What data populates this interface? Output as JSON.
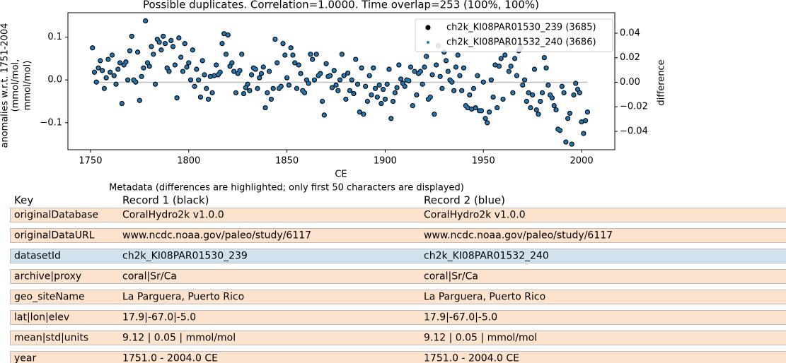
{
  "chart_data": {
    "type": "scatter",
    "title": "Possible duplicates. Correlation=1.0000. Time overlap=253 (100%, 100%)",
    "xlabel": "CE",
    "ylabel": [
      "anomalies w.r.t. 1751-2004",
      "(mmol/mol,",
      "mmol/mol)"
    ],
    "y2label": "difference",
    "xlim": [
      1738.5,
      2016.9
    ],
    "ylim": [
      -0.163,
      0.157
    ],
    "y2lim": [
      -0.055,
      0.0567
    ],
    "xticks": [
      1750,
      1800,
      1850,
      1900,
      1950,
      2000
    ],
    "yticks": [
      {
        "value": -0.1,
        "label": "−0.1"
      },
      {
        "value": 0,
        "label": "0.0"
      },
      {
        "value": 0.1,
        "label": "0.1"
      }
    ],
    "y2ticks": [
      {
        "value": -0.04,
        "label": "−0.04"
      },
      {
        "value": -0.02,
        "label": "−0.02"
      },
      {
        "value": 0,
        "label": "0.00"
      },
      {
        "value": 0.02,
        "label": "0.02"
      },
      {
        "value": 0.04,
        "label": "0.04"
      }
    ],
    "legend": "upper right",
    "x": [
      1751,
      1752,
      1753,
      1754,
      1755,
      1756,
      1757,
      1758,
      1759,
      1760,
      1761,
      1762,
      1763,
      1764,
      1765,
      1766,
      1767,
      1768,
      1769,
      1770,
      1771,
      1772,
      1773,
      1774,
      1775,
      1776,
      1777,
      1778,
      1779,
      1780,
      1781,
      1782,
      1783,
      1784,
      1785,
      1786,
      1787,
      1788,
      1789,
      1790,
      1791,
      1792,
      1793,
      1794,
      1795,
      1796,
      1797,
      1798,
      1799,
      1800,
      1801,
      1802,
      1803,
      1804,
      1805,
      1806,
      1807,
      1808,
      1809,
      1810,
      1811,
      1812,
      1813,
      1814,
      1815,
      1816,
      1817,
      1818,
      1819,
      1820,
      1821,
      1822,
      1823,
      1824,
      1825,
      1826,
      1827,
      1828,
      1829,
      1830,
      1831,
      1832,
      1833,
      1834,
      1835,
      1836,
      1837,
      1838,
      1839,
      1840,
      1841,
      1842,
      1843,
      1844,
      1845,
      1846,
      1847,
      1848,
      1849,
      1850,
      1851,
      1852,
      1853,
      1854,
      1855,
      1856,
      1857,
      1858,
      1859,
      1860,
      1861,
      1862,
      1863,
      1864,
      1865,
      1866,
      1867,
      1868,
      1869,
      1870,
      1871,
      1872,
      1873,
      1874,
      1875,
      1876,
      1877,
      1878,
      1879,
      1880,
      1881,
      1882,
      1883,
      1884,
      1885,
      1886,
      1887,
      1888,
      1889,
      1890,
      1891,
      1892,
      1893,
      1894,
      1895,
      1896,
      1897,
      1898,
      1899,
      1900,
      1901,
      1902,
      1903,
      1904,
      1905,
      1906,
      1907,
      1908,
      1909,
      1910,
      1911,
      1912,
      1913,
      1914,
      1915,
      1916,
      1917,
      1918,
      1919,
      1920,
      1921,
      1922,
      1923,
      1924,
      1925,
      1926,
      1927,
      1928,
      1929,
      1930,
      1931,
      1932,
      1933,
      1934,
      1935,
      1936,
      1937,
      1938,
      1939,
      1940,
      1941,
      1942,
      1943,
      1944,
      1945,
      1946,
      1947,
      1948,
      1949,
      1950,
      1951,
      1952,
      1953,
      1954,
      1955,
      1956,
      1957,
      1958,
      1959,
      1960,
      1961,
      1962,
      1963,
      1964,
      1965,
      1966,
      1967,
      1968,
      1969,
      1970,
      1971,
      1972,
      1973,
      1974,
      1975,
      1976,
      1977,
      1978,
      1979,
      1980,
      1981,
      1982,
      1983,
      1984,
      1985,
      1986,
      1987,
      1988,
      1989,
      1990,
      1991,
      1992,
      1993,
      1994,
      1995,
      1996,
      1997,
      1998,
      1999,
      2000,
      2001,
      2002,
      2003
    ],
    "series": [
      {
        "name": "ch2k_KI08PAR01530_239 (3685)",
        "color": "#000000",
        "values": [
          0.075,
          0.018,
          -0.005,
          0.028,
          0.045,
          0.022,
          -0.02,
          0.005,
          0.048,
          0.018,
          0.058,
          0.01,
          -0.01,
          0.025,
          0.04,
          -0.055,
          0.035,
          0.042,
          0.0,
          0.068,
          0.102,
          0.0,
          -0.005,
          0.065,
          -0.048,
          0.008,
          0.028,
          0.138,
          0.04,
          0.032,
          0.078,
          0.06,
          -0.01,
          0.095,
          0.088,
          0.07,
          0.102,
          0.085,
          0.028,
          0.02,
          0.092,
          0.078,
          0.035,
          -0.042,
          0.098,
          0.053,
          0.02,
          0.085,
          0.03,
          0.04,
          0.0,
          0.07,
          -0.015,
          0.025,
          0.0,
          -0.04,
          0.045,
          0.012,
          -0.02,
          -0.045,
          0.008,
          -0.03,
          0.01,
          0.035,
          0.012,
          0.018,
          0.085,
          0.108,
          0.06,
          0.105,
          0.032,
          0.04,
          0.02,
          -0.03,
          0.015,
          0.022,
          0.06,
          -0.032,
          -0.018,
          -0.01,
          -0.025,
          0.012,
          0.028,
          0.025,
          -0.02,
          0.005,
          0.015,
          0.03,
          -0.065,
          -0.03,
          0.02,
          -0.045,
          -0.02,
          0.095,
          0.04,
          -0.02,
          -0.015,
          0.085,
          0.058,
          0.005,
          -0.012,
          0.075,
          0.058,
          0.04,
          -0.02,
          0.035,
          0.015,
          -0.025,
          -0.03,
          0.0,
          -0.008,
          0.06,
          0.048,
          0.0,
          0.06,
          0.01,
          0.015,
          -0.05,
          -0.082,
          0.038,
          0.008,
          0.01,
          -0.018,
          0.022,
          -0.012,
          -0.025,
          0.0,
          0.06,
          0.01,
          -0.045,
          0.016,
          -0.025,
          0.0,
          -0.032,
          0.048,
          -0.01,
          -0.075,
          0.028,
          -0.08,
          -0.015,
          -0.05,
          0.01,
          -0.035,
          0.028,
          -0.02,
          -0.04,
          -0.012,
          -0.055,
          -0.022,
          -0.045,
          -0.01,
          0.025,
          -0.09,
          -0.05,
          -0.03,
          -0.018,
          0.035,
          0.002,
          -0.008,
          -0.015,
          0.0,
          -0.002,
          0.03,
          -0.06,
          0.02,
          -0.035,
          0.015,
          0.02,
          -0.01,
          0.03,
          0.055,
          -0.045,
          -0.04,
          0.012,
          -0.08,
          0.035,
          0.08,
          0.008,
          -0.02,
          0.065,
          0.045,
          0.02,
          0.0,
          -0.005,
          -0.025,
          0.03,
          0.058,
          0.01,
          -0.025,
          0.028,
          -0.06,
          -0.065,
          -0.035,
          -0.068,
          -0.02,
          -0.065,
          0.01,
          -0.072,
          -0.072,
          -0.005,
          -0.09,
          -0.1,
          -0.075,
          0.0,
          -0.04,
          0.035,
          -0.065,
          0.032,
          0.05,
          -0.045,
          0.058,
          0.082,
          0.02,
          0.032,
          -0.03,
          0.05,
          0.01,
          0.068,
          0.075,
          -0.012,
          0.0,
          -0.05,
          -0.03,
          -0.065,
          -0.035,
          0.025,
          -0.07,
          -0.08,
          -0.05,
          -0.03,
          0.052,
          0.028,
          -0.012,
          -0.035,
          -0.042,
          -0.06,
          -0.07,
          -0.115,
          -0.118,
          -0.015,
          -0.03,
          -0.145,
          -0.09,
          -0.078,
          -0.15,
          -0.035,
          -0.008,
          -0.022,
          -0.03,
          -0.098,
          -0.125,
          -0.095,
          -0.075
        ]
      },
      {
        "name": "ch2k_KI08PAR01532_240 (3686)",
        "color": "#1f77b4",
        "values": [
          0.075,
          0.018,
          -0.005,
          0.028,
          0.045,
          0.022,
          -0.02,
          0.005,
          0.048,
          0.018,
          0.058,
          0.01,
          -0.01,
          0.025,
          0.04,
          -0.055,
          0.035,
          0.042,
          0.0,
          0.068,
          0.102,
          0.0,
          -0.005,
          0.065,
          -0.048,
          0.008,
          0.028,
          0.138,
          0.04,
          0.032,
          0.078,
          0.06,
          -0.01,
          0.095,
          0.088,
          0.07,
          0.102,
          0.085,
          0.028,
          0.02,
          0.092,
          0.078,
          0.035,
          -0.042,
          0.098,
          0.053,
          0.02,
          0.085,
          0.03,
          0.04,
          0.0,
          0.07,
          -0.015,
          0.025,
          0.0,
          -0.04,
          0.045,
          0.012,
          -0.02,
          -0.045,
          0.008,
          -0.03,
          0.01,
          0.035,
          0.012,
          0.018,
          0.085,
          0.108,
          0.06,
          0.105,
          0.032,
          0.04,
          0.02,
          -0.03,
          0.015,
          0.022,
          0.06,
          -0.032,
          -0.018,
          -0.01,
          -0.025,
          0.012,
          0.028,
          0.025,
          -0.02,
          0.005,
          0.015,
          0.03,
          -0.065,
          -0.03,
          0.02,
          -0.045,
          -0.02,
          0.095,
          0.04,
          -0.02,
          -0.015,
          0.085,
          0.058,
          0.005,
          -0.012,
          0.075,
          0.058,
          0.04,
          -0.02,
          0.035,
          0.015,
          -0.025,
          -0.03,
          0.0,
          -0.008,
          0.06,
          0.048,
          0.0,
          0.06,
          0.01,
          0.015,
          -0.05,
          -0.082,
          0.038,
          0.008,
          0.01,
          -0.018,
          0.022,
          -0.012,
          -0.025,
          0.0,
          0.06,
          0.01,
          -0.045,
          0.016,
          -0.025,
          0.0,
          -0.032,
          0.048,
          -0.01,
          -0.075,
          0.028,
          -0.08,
          -0.015,
          -0.05,
          0.01,
          -0.035,
          0.028,
          -0.02,
          -0.04,
          -0.012,
          -0.055,
          -0.022,
          -0.045,
          -0.01,
          0.025,
          -0.09,
          -0.05,
          -0.03,
          -0.018,
          0.035,
          0.002,
          -0.008,
          -0.015,
          0.0,
          -0.002,
          0.03,
          -0.06,
          0.02,
          -0.035,
          0.015,
          0.02,
          -0.01,
          0.03,
          0.055,
          -0.045,
          -0.04,
          0.012,
          -0.08,
          0.035,
          0.08,
          0.008,
          -0.02,
          0.065,
          0.045,
          0.02,
          0.0,
          -0.005,
          -0.025,
          0.03,
          0.058,
          0.01,
          -0.025,
          0.028,
          -0.06,
          -0.065,
          -0.035,
          -0.068,
          -0.02,
          -0.065,
          0.01,
          -0.072,
          -0.072,
          -0.005,
          -0.09,
          -0.1,
          -0.075,
          0.0,
          -0.04,
          0.035,
          -0.065,
          0.032,
          0.05,
          -0.045,
          0.058,
          0.082,
          0.02,
          0.032,
          -0.03,
          0.05,
          0.01,
          0.068,
          0.075,
          -0.012,
          0.0,
          -0.05,
          -0.03,
          -0.065,
          -0.035,
          0.025,
          -0.07,
          -0.08,
          -0.05,
          -0.03,
          0.052,
          0.028,
          -0.012,
          -0.035,
          -0.042,
          -0.06,
          -0.07,
          -0.115,
          -0.118,
          -0.015,
          -0.03,
          -0.145,
          -0.09,
          -0.078,
          -0.15,
          -0.035,
          -0.008,
          -0.022,
          -0.03,
          -0.098,
          -0.125,
          -0.095,
          -0.075
        ]
      }
    ],
    "difference_line": {
      "x": [
        1751,
        2003
      ],
      "values": [
        0,
        0
      ],
      "axis": "y2",
      "color": "#bbbbbb"
    }
  },
  "table": {
    "caption": "Metadata (differences are highlighted; only first 50 characters are displayed)",
    "header": [
      "Key",
      "Record 1 (black)",
      "Record 2 (blue)"
    ],
    "rows": [
      [
        "originalDatabase",
        "CoralHydro2k v1.0.0",
        "CoralHydro2k v1.0.0"
      ],
      [
        "originalDataURL",
        "www.ncdc.noaa.gov/paleo/study/6117",
        "www.ncdc.noaa.gov/paleo/study/6117"
      ],
      [
        "datasetId",
        "ch2k_KI08PAR01530_239",
        "ch2k_KI08PAR01532_240"
      ],
      [
        "archive|proxy",
        "coral|Sr/Ca",
        "coral|Sr/Ca"
      ],
      [
        "geo_siteName",
        "La Parguera, Puerto Rico",
        "La Parguera, Puerto Rico"
      ],
      [
        "lat|lon|elev",
        "17.9|-67.0|-5.0",
        "17.9|-67.0|-5.0"
      ],
      [
        "mean|std|units",
        "9.12 | 0.05 | mmol/mol",
        "9.12 | 0.05 | mmol/mol"
      ],
      [
        "year",
        "1751.0 - 2004.0 CE",
        "1751.0 - 2004.0 CE"
      ]
    ],
    "row_color": "#fde3cd",
    "highlight_color": "#d0e2ee",
    "highlighted_rows": [
      2
    ]
  }
}
